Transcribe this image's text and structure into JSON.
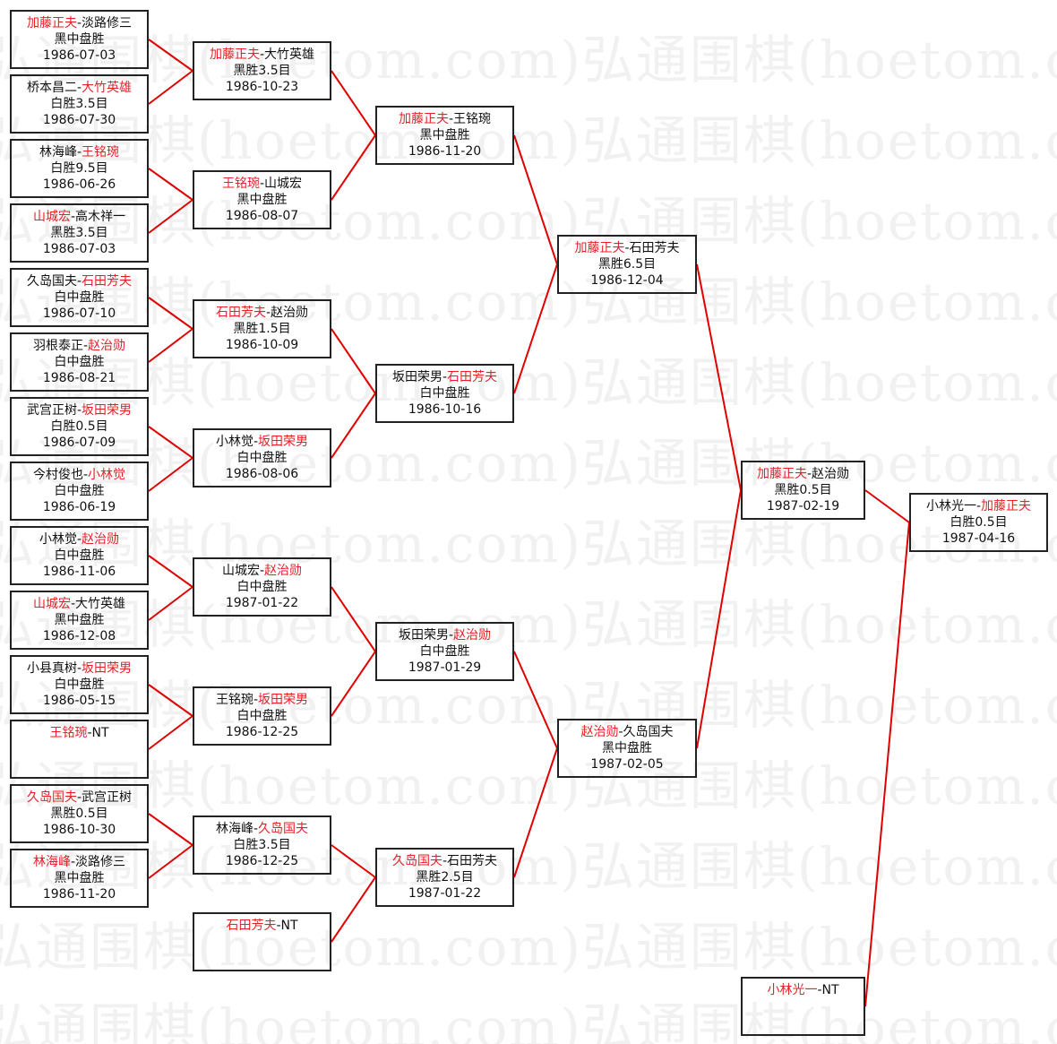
{
  "watermark": "弘通围棋(hoetom.com)",
  "colors": {
    "winner": "#e8202a",
    "line": "#e00000",
    "border": "#222222",
    "text": "#111111"
  },
  "rounds": [
    {
      "matches": [
        {
          "p1": "加藤正夫",
          "p2": "淡路修三",
          "winner": 1,
          "result": "黑中盘胜",
          "date": "1986-07-03"
        },
        {
          "p1": "桥本昌二",
          "p2": "大竹英雄",
          "winner": 2,
          "result": "白胜3.5目",
          "date": "1986-07-30"
        },
        {
          "p1": "林海峰",
          "p2": "王铭琬",
          "winner": 2,
          "result": "白胜9.5目",
          "date": "1986-06-26"
        },
        {
          "p1": "山城宏",
          "p2": "高木祥一",
          "winner": 1,
          "result": "黑胜3.5目",
          "date": "1986-07-03"
        },
        {
          "p1": "久岛国夫",
          "p2": "石田芳夫",
          "winner": 2,
          "result": "白中盘胜",
          "date": "1986-07-10"
        },
        {
          "p1": "羽根泰正",
          "p2": "赵治勋",
          "winner": 2,
          "result": "白中盘胜",
          "date": "1986-08-21"
        },
        {
          "p1": "武宫正树",
          "p2": "坂田荣男",
          "winner": 2,
          "result": "白胜0.5目",
          "date": "1986-07-09"
        },
        {
          "p1": "今村俊也",
          "p2": "小林觉",
          "winner": 2,
          "result": "白中盘胜",
          "date": "1986-06-19"
        },
        {
          "p1": "小林觉",
          "p2": "赵治勋",
          "winner": 2,
          "result": "白中盘胜",
          "date": "1986-11-06"
        },
        {
          "p1": "山城宏",
          "p2": "大竹英雄",
          "winner": 1,
          "result": "黑中盘胜",
          "date": "1986-12-08"
        },
        {
          "p1": "小县真树",
          "p2": "坂田荣男",
          "winner": 2,
          "result": "白中盘胜",
          "date": "1986-05-15"
        },
        {
          "p1": "王铭琬",
          "p2": "NT",
          "winner": 1,
          "result": "",
          "date": ""
        },
        {
          "p1": "久岛国夫",
          "p2": "武宫正树",
          "winner": 1,
          "result": "黑胜0.5目",
          "date": "1986-10-30"
        },
        {
          "p1": "林海峰",
          "p2": "淡路修三",
          "winner": 1,
          "result": "黑中盘胜",
          "date": "1986-11-20"
        }
      ]
    },
    {
      "matches": [
        {
          "p1": "加藤正夫",
          "p2": "大竹英雄",
          "winner": 1,
          "result": "黑胜3.5目",
          "date": "1986-10-23"
        },
        {
          "p1": "王铭琬",
          "p2": "山城宏",
          "winner": 1,
          "result": "黑中盘胜",
          "date": "1986-08-07"
        },
        {
          "p1": "石田芳夫",
          "p2": "赵治勋",
          "winner": 1,
          "result": "黑胜1.5目",
          "date": "1986-10-09"
        },
        {
          "p1": "小林觉",
          "p2": "坂田荣男",
          "winner": 2,
          "result": "白中盘胜",
          "date": "1986-08-06"
        },
        {
          "p1": "山城宏",
          "p2": "赵治勋",
          "winner": 2,
          "result": "白中盘胜",
          "date": "1987-01-22"
        },
        {
          "p1": "王铭琬",
          "p2": "坂田荣男",
          "winner": 2,
          "result": "白中盘胜",
          "date": "1986-12-25"
        },
        {
          "p1": "林海峰",
          "p2": "久岛国夫",
          "winner": 2,
          "result": "白胜3.5目",
          "date": "1986-12-25"
        },
        {
          "p1": "石田芳夫",
          "p2": "NT",
          "winner": 1,
          "result": "",
          "date": ""
        }
      ]
    },
    {
      "matches": [
        {
          "p1": "加藤正夫",
          "p2": "王铭琬",
          "winner": 1,
          "result": "黑中盘胜",
          "date": "1986-11-20"
        },
        {
          "p1": "坂田荣男",
          "p2": "石田芳夫",
          "winner": 2,
          "result": "白中盘胜",
          "date": "1986-10-16"
        },
        {
          "p1": "坂田荣男",
          "p2": "赵治勋",
          "winner": 2,
          "result": "白中盘胜",
          "date": "1987-01-29"
        },
        {
          "p1": "久岛国夫",
          "p2": "石田芳夫",
          "winner": 1,
          "result": "黑胜2.5目",
          "date": "1987-01-22"
        }
      ]
    },
    {
      "matches": [
        {
          "p1": "加藤正夫",
          "p2": "石田芳夫",
          "winner": 1,
          "result": "黑胜6.5目",
          "date": "1986-12-04"
        },
        {
          "p1": "赵治勋",
          "p2": "久岛国夫",
          "winner": 1,
          "result": "黑中盘胜",
          "date": "1987-02-05"
        }
      ]
    },
    {
      "matches": [
        {
          "p1": "加藤正夫",
          "p2": "赵治勋",
          "winner": 1,
          "result": "黑胜0.5目",
          "date": "1987-02-19"
        },
        {
          "p1": "小林光一",
          "p2": "NT",
          "winner": 1,
          "result": "",
          "date": ""
        }
      ]
    },
    {
      "matches": [
        {
          "p1": "小林光一",
          "p2": "加藤正夫",
          "winner": 2,
          "result": "白胜0.5目",
          "date": "1987-04-16"
        }
      ]
    }
  ]
}
